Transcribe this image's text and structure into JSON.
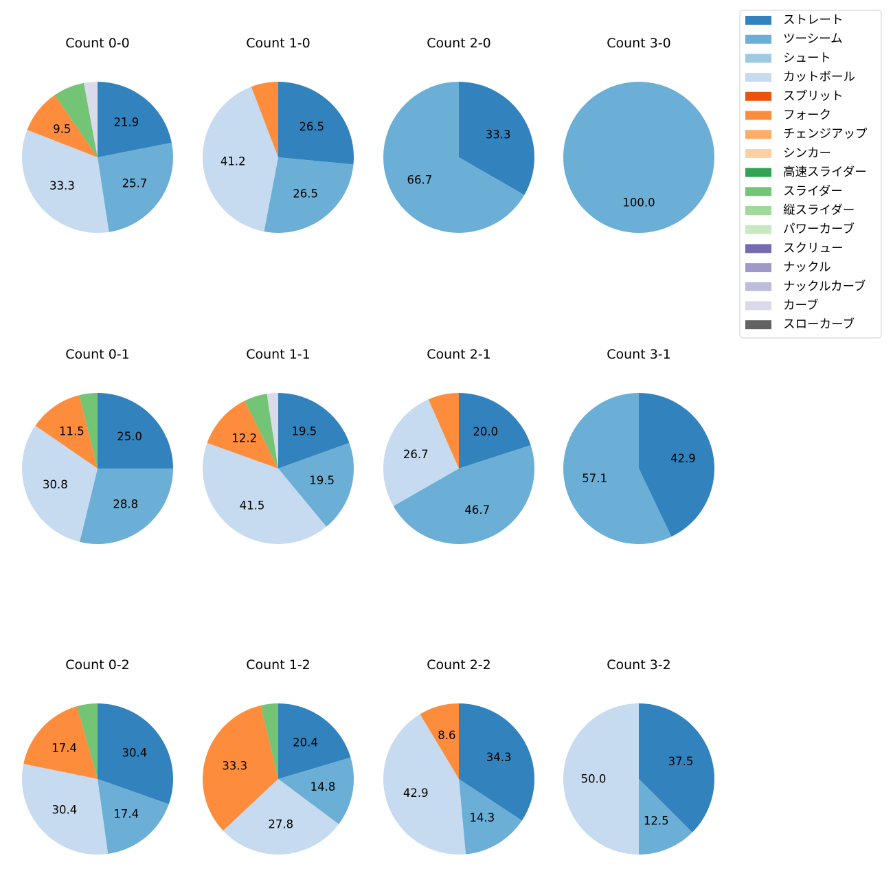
{
  "colors": {
    "ストレート": "#3182bd",
    "ツーシーム": "#6baed6",
    "シュート": "#9ecae1",
    "カットボール": "#c6dbef",
    "スプリット": "#e6550d",
    "フォーク": "#fd8d3c",
    "チェンジアップ": "#fdae6b",
    "シンカー": "#fdd0a2",
    "高速スライダー": "#31a354",
    "スライダー": "#74c476",
    "縦スライダー": "#a1d99b",
    "パワーカーブ": "#c7e9c0",
    "スクリュー": "#756bb1",
    "ナックル": "#9e9ac8",
    "ナックルカーブ": "#bcbddc",
    "カーブ": "#dadaeb",
    "スローカーブ": "#636363"
  },
  "legend": [
    "ストレート",
    "ツーシーム",
    "シュート",
    "カットボール",
    "スプリット",
    "フォーク",
    "チェンジアップ",
    "シンカー",
    "高速スライダー",
    "スライダー",
    "縦スライダー",
    "パワーカーブ",
    "スクリュー",
    "ナックル",
    "ナックルカーブ",
    "カーブ",
    "スローカーブ"
  ],
  "chart_data": [
    {
      "type": "pie",
      "title": "Count 0-0",
      "slices": [
        {
          "name": "ストレート",
          "value": 21.9,
          "label": "21.9"
        },
        {
          "name": "ツーシーム",
          "value": 25.7,
          "label": "25.7"
        },
        {
          "name": "カットボール",
          "value": 33.3,
          "label": "33.3"
        },
        {
          "name": "フォーク",
          "value": 9.5,
          "label": "9.5"
        },
        {
          "name": "スライダー",
          "value": 6.7,
          "label": ""
        },
        {
          "name": "カーブ",
          "value": 2.9,
          "label": ""
        }
      ]
    },
    {
      "type": "pie",
      "title": "Count 1-0",
      "slices": [
        {
          "name": "ストレート",
          "value": 26.5,
          "label": "26.5"
        },
        {
          "name": "ツーシーム",
          "value": 26.5,
          "label": "26.5"
        },
        {
          "name": "カットボール",
          "value": 41.2,
          "label": "41.2"
        },
        {
          "name": "フォーク",
          "value": 5.8,
          "label": ""
        }
      ]
    },
    {
      "type": "pie",
      "title": "Count 2-0",
      "slices": [
        {
          "name": "ストレート",
          "value": 33.3,
          "label": "33.3"
        },
        {
          "name": "ツーシーム",
          "value": 66.7,
          "label": "66.7"
        }
      ]
    },
    {
      "type": "pie",
      "title": "Count 3-0",
      "slices": [
        {
          "name": "ツーシーム",
          "value": 100.0,
          "label": "100.0"
        }
      ]
    },
    {
      "type": "pie",
      "title": "Count 0-1",
      "slices": [
        {
          "name": "ストレート",
          "value": 25.0,
          "label": "25.0"
        },
        {
          "name": "ツーシーム",
          "value": 28.8,
          "label": "28.8"
        },
        {
          "name": "カットボール",
          "value": 30.8,
          "label": "30.8"
        },
        {
          "name": "フォーク",
          "value": 11.5,
          "label": "11.5"
        },
        {
          "name": "スライダー",
          "value": 3.9,
          "label": ""
        }
      ]
    },
    {
      "type": "pie",
      "title": "Count 1-1",
      "slices": [
        {
          "name": "ストレート",
          "value": 19.5,
          "label": "19.5"
        },
        {
          "name": "ツーシーム",
          "value": 19.5,
          "label": "19.5"
        },
        {
          "name": "カットボール",
          "value": 41.5,
          "label": "41.5"
        },
        {
          "name": "フォーク",
          "value": 12.2,
          "label": "12.2"
        },
        {
          "name": "スライダー",
          "value": 4.9,
          "label": ""
        },
        {
          "name": "カーブ",
          "value": 2.4,
          "label": ""
        }
      ]
    },
    {
      "type": "pie",
      "title": "Count 2-1",
      "slices": [
        {
          "name": "ストレート",
          "value": 20.0,
          "label": "20.0"
        },
        {
          "name": "ツーシーム",
          "value": 46.7,
          "label": "46.7"
        },
        {
          "name": "カットボール",
          "value": 26.7,
          "label": "26.7"
        },
        {
          "name": "フォーク",
          "value": 6.6,
          "label": ""
        }
      ]
    },
    {
      "type": "pie",
      "title": "Count 3-1",
      "slices": [
        {
          "name": "ストレート",
          "value": 42.9,
          "label": "42.9"
        },
        {
          "name": "ツーシーム",
          "value": 57.1,
          "label": "57.1"
        }
      ]
    },
    {
      "type": "pie",
      "title": "Count 0-2",
      "slices": [
        {
          "name": "ストレート",
          "value": 30.4,
          "label": "30.4"
        },
        {
          "name": "ツーシーム",
          "value": 17.4,
          "label": "17.4"
        },
        {
          "name": "カットボール",
          "value": 30.4,
          "label": "30.4"
        },
        {
          "name": "フォーク",
          "value": 17.4,
          "label": "17.4"
        },
        {
          "name": "スライダー",
          "value": 4.4,
          "label": ""
        }
      ]
    },
    {
      "type": "pie",
      "title": "Count 1-2",
      "slices": [
        {
          "name": "ストレート",
          "value": 20.4,
          "label": "20.4"
        },
        {
          "name": "ツーシーム",
          "value": 14.8,
          "label": "14.8"
        },
        {
          "name": "カットボール",
          "value": 27.8,
          "label": "27.8"
        },
        {
          "name": "フォーク",
          "value": 33.3,
          "label": "33.3"
        },
        {
          "name": "スライダー",
          "value": 3.7,
          "label": ""
        }
      ]
    },
    {
      "type": "pie",
      "title": "Count 2-2",
      "slices": [
        {
          "name": "ストレート",
          "value": 34.3,
          "label": "34.3"
        },
        {
          "name": "ツーシーム",
          "value": 14.3,
          "label": "14.3"
        },
        {
          "name": "カットボール",
          "value": 42.9,
          "label": "42.9"
        },
        {
          "name": "フォーク",
          "value": 8.6,
          "label": "8.6"
        }
      ]
    },
    {
      "type": "pie",
      "title": "Count 3-2",
      "slices": [
        {
          "name": "ストレート",
          "value": 37.5,
          "label": "37.5"
        },
        {
          "name": "ツーシーム",
          "value": 12.5,
          "label": "12.5"
        },
        {
          "name": "カットボール",
          "value": 50.0,
          "label": "50.0"
        }
      ]
    }
  ]
}
